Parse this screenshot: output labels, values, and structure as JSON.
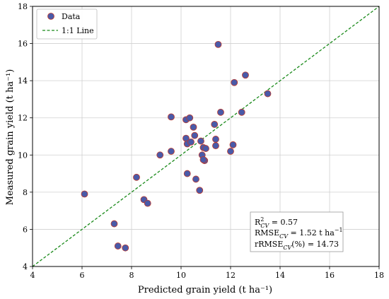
{
  "chart_data": {
    "type": "scatter",
    "title": "",
    "xlabel": "Predicted grain yield (t ha⁻¹)",
    "ylabel": "Measured grain yield (t ha⁻¹)",
    "xlim": [
      4,
      18
    ],
    "ylim": [
      4,
      18
    ],
    "xticks": [
      "4",
      "6",
      "8",
      "10",
      "12",
      "14",
      "16",
      "18"
    ],
    "yticks": [
      "4",
      "6",
      "8",
      "10",
      "12",
      "14",
      "16",
      "18"
    ],
    "grid": true,
    "legend_position": "top-left",
    "colors": {
      "marker_fill": "#4a5aa8",
      "marker_edge": "#c0392b",
      "line": "#1a8a1a"
    },
    "series": [
      {
        "name": "Data",
        "points": [
          [
            6.1,
            7.9
          ],
          [
            7.3,
            6.3
          ],
          [
            7.45,
            5.1
          ],
          [
            7.75,
            5.0
          ],
          [
            8.2,
            8.8
          ],
          [
            8.5,
            7.6
          ],
          [
            8.65,
            7.4
          ],
          [
            9.15,
            10.0
          ],
          [
            9.6,
            12.05
          ],
          [
            9.6,
            10.2
          ],
          [
            10.2,
            11.9
          ],
          [
            10.2,
            10.9
          ],
          [
            10.25,
            10.6
          ],
          [
            10.25,
            9.0
          ],
          [
            10.35,
            12.0
          ],
          [
            10.4,
            10.7
          ],
          [
            10.5,
            11.5
          ],
          [
            10.55,
            11.05
          ],
          [
            10.6,
            8.7
          ],
          [
            10.75,
            8.1
          ],
          [
            10.8,
            10.75
          ],
          [
            10.85,
            10.0
          ],
          [
            10.9,
            10.4
          ],
          [
            10.95,
            9.7
          ],
          [
            10.9,
            9.75
          ],
          [
            11.0,
            10.35
          ],
          [
            11.35,
            11.65
          ],
          [
            11.4,
            10.85
          ],
          [
            11.4,
            10.5
          ],
          [
            11.5,
            15.95
          ],
          [
            11.6,
            12.3
          ],
          [
            12.0,
            10.2
          ],
          [
            12.1,
            10.55
          ],
          [
            12.15,
            13.9
          ],
          [
            12.45,
            12.3
          ],
          [
            12.6,
            14.3
          ],
          [
            13.5,
            13.3
          ]
        ]
      },
      {
        "name": "1:1 Line",
        "line": [
          [
            4,
            4
          ],
          [
            18,
            18
          ]
        ]
      }
    ],
    "stats": {
      "r2": {
        "label": "R",
        "sup": "2",
        "sub": "CV",
        "value": " = 0.57"
      },
      "rmse": {
        "label": "RMSE",
        "sub": "CV",
        "value": " = 1.52 t ha",
        "unit_sup": "−1"
      },
      "rrmse": {
        "label": "rRMSE",
        "sub": "CV",
        "value": "(%) = 14.73"
      }
    }
  }
}
